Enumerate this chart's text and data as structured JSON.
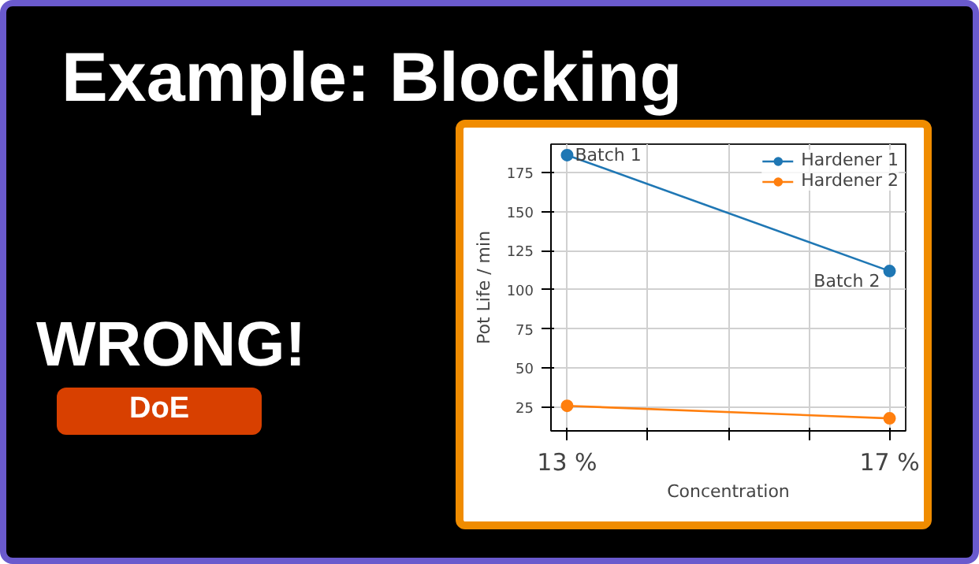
{
  "chart_data": {
    "type": "line",
    "title": "Example: Blocking",
    "xlabel": "Concentration",
    "ylabel": "Pot Life / min",
    "x": [
      13,
      17
    ],
    "series": [
      {
        "name": "Hardener 1",
        "color": "#1f77b4",
        "values": [
          186,
          112
        ]
      },
      {
        "name": "Hardener 2",
        "color": "#ff7f0e",
        "values": [
          26,
          18
        ]
      }
    ],
    "xlim": [
      12.8,
      17.2
    ],
    "ylim": [
      10,
      193
    ],
    "xticks": [
      {
        "value": 13,
        "label": "13 %"
      },
      {
        "value": 14,
        "label": null
      },
      {
        "value": 15,
        "label": null
      },
      {
        "value": 16,
        "label": null
      },
      {
        "value": 17,
        "label": "17 %"
      }
    ],
    "yticks": [
      25,
      50,
      75,
      100,
      125,
      150,
      175
    ],
    "annotations": [
      {
        "text": "Batch 1",
        "x": 13,
        "y": 186
      },
      {
        "text": "Batch 2",
        "x": 17,
        "y": 112
      },
      "WRONG!",
      "DoE"
    ],
    "grid": true,
    "legend": "top right",
    "marker": "circle",
    "line_style": "solid"
  }
}
